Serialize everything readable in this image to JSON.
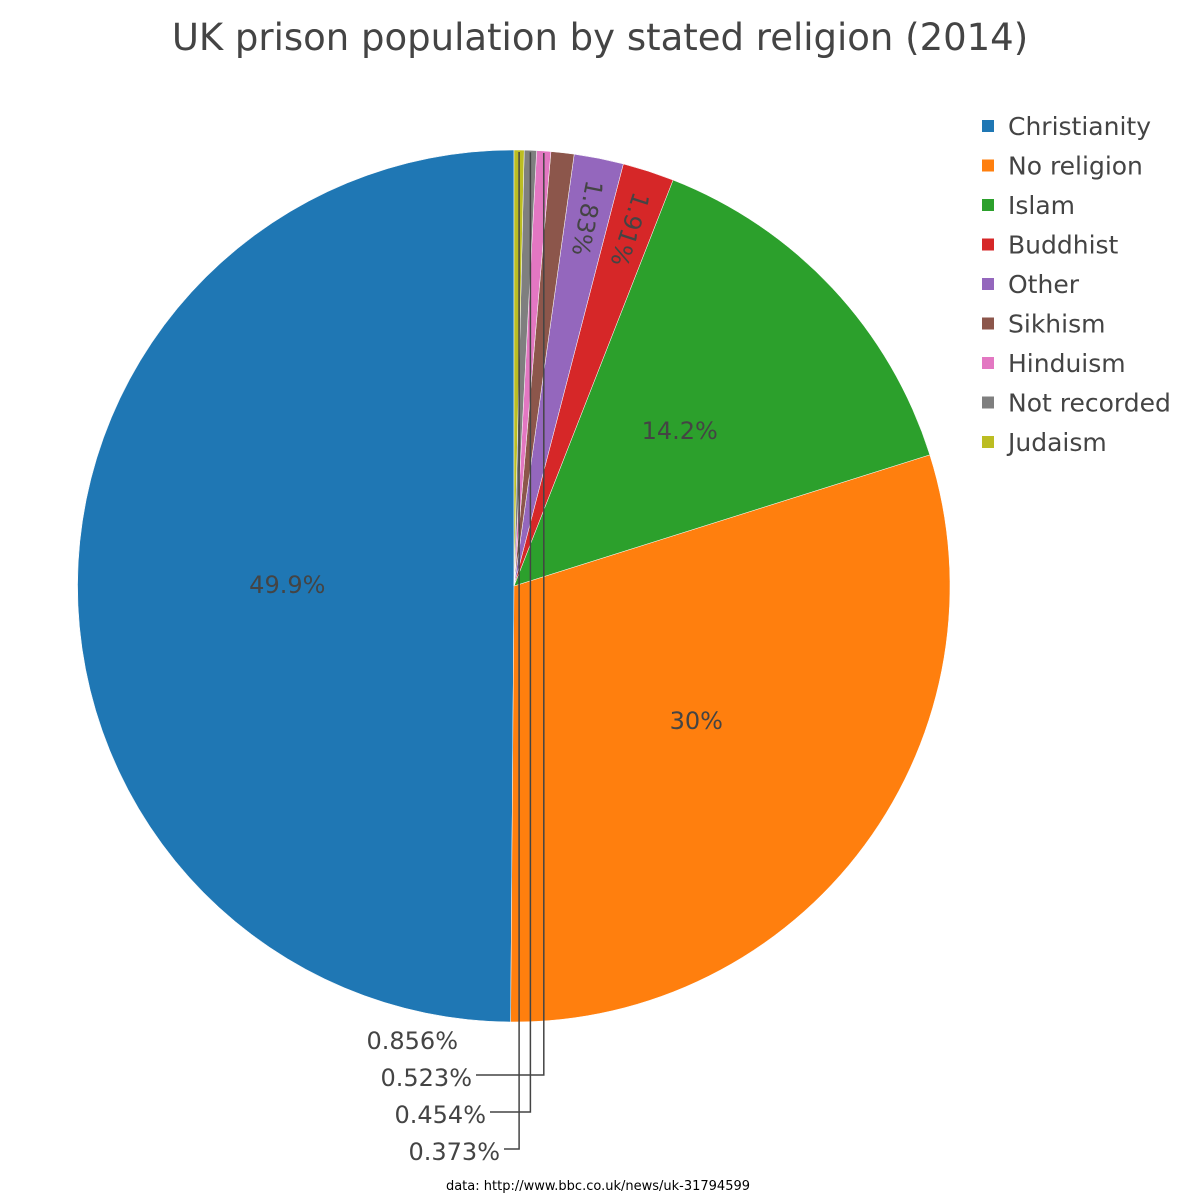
{
  "chart_data": {
    "type": "pie",
    "title": "UK prison population by stated religion (2014)",
    "source_note": "data: http://www.bbc.co.uk/news/uk-31794599",
    "legend_position": "top-right",
    "direction": "counterclockwise",
    "start_angle": "12 o'clock",
    "slices": [
      {
        "label": "Christianity",
        "value": 49.9,
        "value_label": "49.9%",
        "color": "#1f77b4"
      },
      {
        "label": "No religion",
        "value": 30,
        "value_label": "30%",
        "color": "#ff7f0e"
      },
      {
        "label": "Islam",
        "value": 14.2,
        "value_label": "14.2%",
        "color": "#2ca02c"
      },
      {
        "label": "Buddhist",
        "value": 1.91,
        "value_label": "1.91%",
        "color": "#d62728"
      },
      {
        "label": "Other",
        "value": 1.83,
        "value_label": "1.83%",
        "color": "#9467bd"
      },
      {
        "label": "Sikhism",
        "value": 0.856,
        "value_label": "0.856%",
        "color": "#8c564b"
      },
      {
        "label": "Hinduism",
        "value": 0.523,
        "value_label": "0.523%",
        "color": "#e377c2"
      },
      {
        "label": "Not recorded",
        "value": 0.454,
        "value_label": "0.454%",
        "color": "#7f7f7f"
      },
      {
        "label": "Judaism",
        "value": 0.373,
        "value_label": "0.373%",
        "color": "#bcbd22"
      }
    ]
  }
}
